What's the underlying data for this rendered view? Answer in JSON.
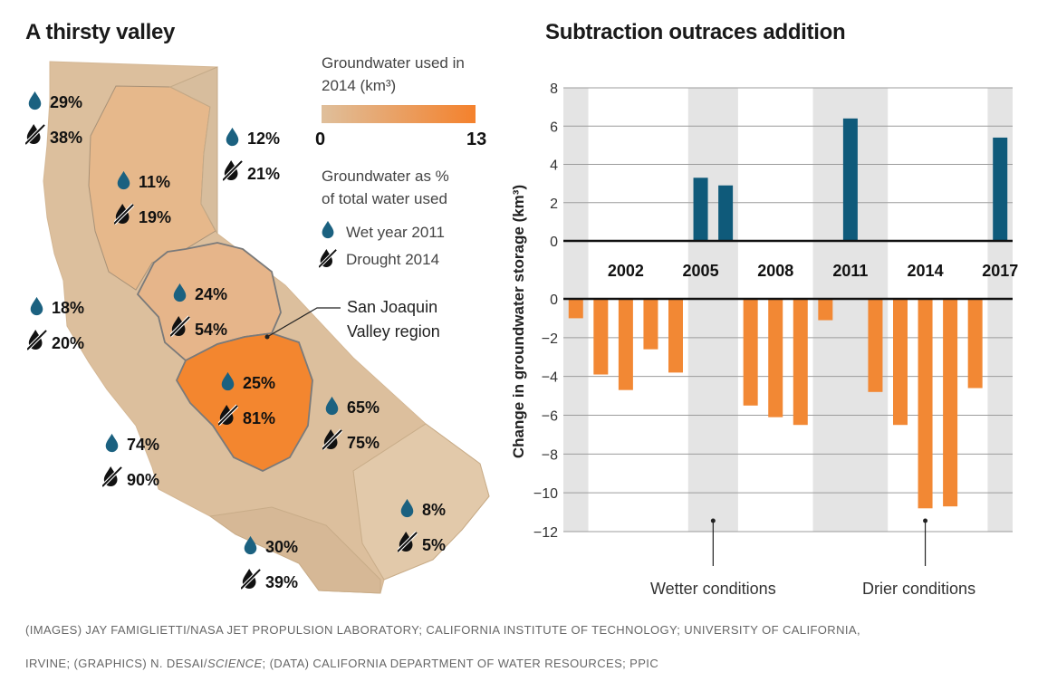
{
  "map": {
    "title": "A thirsty valley",
    "legend": {
      "gradient_title_line1": "Groundwater used in",
      "gradient_title_line2": "2014 (km³)",
      "gradient_min": "0",
      "gradient_max": "13",
      "gradient_colors": [
        "#dfbf9b",
        "#f4812c"
      ],
      "pct_title_line1": "Groundwater as %",
      "pct_title_line2": "of total water used",
      "wet_label": "Wet year 2011",
      "drought_label": "Drought 2014"
    },
    "callout_line1": "San Joaquin",
    "callout_line2": "Valley region",
    "colors": {
      "wet_icon": "#1b6180",
      "drought_icon": "#111111",
      "outline": "#7a7a7a"
    },
    "regions": [
      {
        "wet": "29%",
        "drought": "38%"
      },
      {
        "wet": "12%",
        "drought": "21%"
      },
      {
        "wet": "11%",
        "drought": "19%"
      },
      {
        "wet": "24%",
        "drought": "54%"
      },
      {
        "wet": "18%",
        "drought": "20%"
      },
      {
        "wet": "25%",
        "drought": "81%"
      },
      {
        "wet": "65%",
        "drought": "75%"
      },
      {
        "wet": "74%",
        "drought": "90%"
      },
      {
        "wet": "8%",
        "drought": "5%"
      },
      {
        "wet": "30%",
        "drought": "39%"
      }
    ]
  },
  "chart_data": {
    "type": "bar",
    "title": "Subtraction outraces addition",
    "ylabel": "Change in groundwater storage (km³)",
    "upper_ylim": [
      0,
      8
    ],
    "lower_ylim": [
      -12,
      0
    ],
    "upper_ticks": [
      "8",
      "6",
      "4",
      "2",
      "0"
    ],
    "lower_ticks": [
      "0",
      "−2",
      "−4",
      "−6",
      "−8",
      "−10",
      "−12"
    ],
    "x_tick_labels": [
      "2002",
      "2005",
      "2008",
      "2011",
      "2014",
      "2017"
    ],
    "x_ticks": [
      2002,
      2005,
      2008,
      2011,
      2014,
      2017
    ],
    "years": [
      2000,
      2001,
      2002,
      2003,
      2004,
      2005,
      2006,
      2007,
      2008,
      2009,
      2010,
      2011,
      2012,
      2013,
      2014,
      2015,
      2016,
      2017
    ],
    "values": [
      -1.0,
      -3.9,
      -4.7,
      -2.6,
      -3.8,
      3.3,
      2.9,
      -5.5,
      -6.1,
      -6.5,
      -1.1,
      6.4,
      -4.8,
      -6.5,
      -10.8,
      -10.7,
      -4.6,
      5.4
    ],
    "wet_periods": [
      [
        1999.5,
        2000.5
      ],
      [
        2004.5,
        2006.5
      ],
      [
        2009.5,
        2012.5
      ],
      [
        2016.5,
        2017.5
      ]
    ],
    "grid": true,
    "colors": {
      "positive": "#0f5a7a",
      "negative": "#f28834",
      "shade": "#e4e4e4",
      "grid": "#9c9c9c"
    },
    "annotations": {
      "wetter": "Wetter conditions",
      "drier": "Drier conditions"
    }
  },
  "credits": {
    "line1": "(IMAGES) JAY FAMIGLIETTI/NASA JET PROPULSION LABORATORY; CALIFORNIA INSTITUTE OF TECHNOLOGY; UNIVERSITY OF CALIFORNIA,",
    "line2_a": "IRVINE; (GRAPHICS) N. DESAI/",
    "line2_b": "SCIENCE",
    "line2_c": "; (DATA) CALIFORNIA DEPARTMENT OF WATER RESOURCES; PPIC"
  }
}
